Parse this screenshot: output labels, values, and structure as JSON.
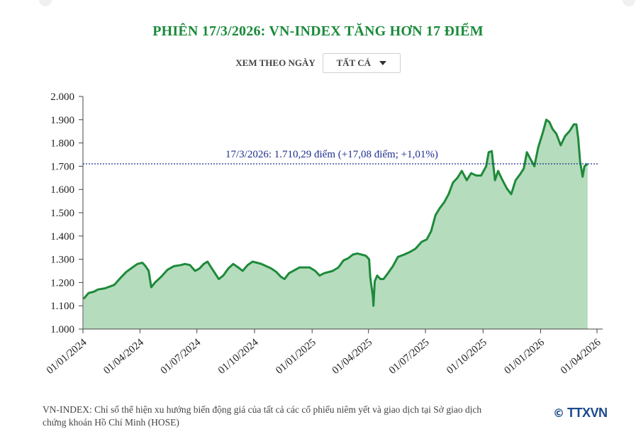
{
  "title": "PHIÊN 17/3/2026: VN-INDEX TĂNG HƠN 17 ĐIỂM",
  "filter": {
    "label": "XEM THEO NGÀY",
    "selected": "TẤT CẢ"
  },
  "footnote": {
    "line1": "VN-INDEX: Chỉ số thể hiện xu hướng biến động giá của tất cả các cổ phiếu niêm yết và giao dịch tại Sở giao dịch",
    "line2": "chứng khoán Hồ Chí Minh (HOSE)"
  },
  "logo": {
    "symbol": "©",
    "text": "TTXVN"
  },
  "colors": {
    "title": "#1a8a3a",
    "line": "#1e8a3a",
    "area": "#b5dcbd",
    "reference": "#1f2f8f"
  },
  "chart_data": {
    "type": "area",
    "ylim": [
      1000,
      2000
    ],
    "yticks": [
      "1.000",
      "1.100",
      "1.200",
      "1.300",
      "1.400",
      "1.500",
      "1.600",
      "1.700",
      "1.800",
      "1.900",
      "2.000"
    ],
    "xticks": [
      "01/01/2024",
      "01/04/2024",
      "01/07/2024",
      "01/10/2024",
      "01/01/2025",
      "01/04/2025",
      "01/07/2025",
      "01/10/2025",
      "01/01/2026",
      "01/04/2026"
    ],
    "xrange": [
      "2024-01-01",
      "2026-04-01"
    ],
    "grid": false,
    "annotation": {
      "text": "17/3/2026: 1.710,29 điểm (+17,08 điểm; +1,01%)",
      "value": 1710.29
    },
    "points": [
      [
        "2024-01-02",
        1130
      ],
      [
        "2024-01-10",
        1155
      ],
      [
        "2024-01-18",
        1160
      ],
      [
        "2024-01-25",
        1170
      ],
      [
        "2024-02-05",
        1175
      ],
      [
        "2024-02-20",
        1190
      ],
      [
        "2024-03-01",
        1220
      ],
      [
        "2024-03-10",
        1245
      ],
      [
        "2024-03-20",
        1265
      ],
      [
        "2024-03-28",
        1280
      ],
      [
        "2024-04-05",
        1285
      ],
      [
        "2024-04-10",
        1270
      ],
      [
        "2024-04-15",
        1250
      ],
      [
        "2024-04-19",
        1180
      ],
      [
        "2024-04-25",
        1200
      ],
      [
        "2024-05-05",
        1225
      ],
      [
        "2024-05-15",
        1255
      ],
      [
        "2024-05-25",
        1270
      ],
      [
        "2024-06-05",
        1275
      ],
      [
        "2024-06-12",
        1280
      ],
      [
        "2024-06-20",
        1275
      ],
      [
        "2024-06-28",
        1250
      ],
      [
        "2024-07-05",
        1260
      ],
      [
        "2024-07-12",
        1280
      ],
      [
        "2024-07-18",
        1290
      ],
      [
        "2024-07-25",
        1260
      ],
      [
        "2024-08-05",
        1215
      ],
      [
        "2024-08-12",
        1230
      ],
      [
        "2024-08-20",
        1260
      ],
      [
        "2024-08-28",
        1280
      ],
      [
        "2024-09-05",
        1265
      ],
      [
        "2024-09-12",
        1250
      ],
      [
        "2024-09-20",
        1275
      ],
      [
        "2024-09-28",
        1290
      ],
      [
        "2024-10-05",
        1285
      ],
      [
        "2024-10-12",
        1280
      ],
      [
        "2024-10-20",
        1270
      ],
      [
        "2024-10-28",
        1260
      ],
      [
        "2024-11-05",
        1245
      ],
      [
        "2024-11-12",
        1225
      ],
      [
        "2024-11-18",
        1215
      ],
      [
        "2024-11-25",
        1240
      ],
      [
        "2024-12-05",
        1255
      ],
      [
        "2024-12-12",
        1265
      ],
      [
        "2024-12-20",
        1265
      ],
      [
        "2024-12-28",
        1265
      ],
      [
        "2025-01-06",
        1250
      ],
      [
        "2025-01-13",
        1230
      ],
      [
        "2025-01-20",
        1240
      ],
      [
        "2025-02-03",
        1250
      ],
      [
        "2025-02-12",
        1265
      ],
      [
        "2025-02-20",
        1295
      ],
      [
        "2025-02-28",
        1305
      ],
      [
        "2025-03-07",
        1320
      ],
      [
        "2025-03-14",
        1325
      ],
      [
        "2025-03-21",
        1320
      ],
      [
        "2025-03-28",
        1315
      ],
      [
        "2025-04-02",
        1300
      ],
      [
        "2025-04-04",
        1220
      ],
      [
        "2025-04-08",
        1140
      ],
      [
        "2025-04-09",
        1100
      ],
      [
        "2025-04-11",
        1205
      ],
      [
        "2025-04-15",
        1230
      ],
      [
        "2025-04-20",
        1215
      ],
      [
        "2025-04-25",
        1215
      ],
      [
        "2025-05-02",
        1240
      ],
      [
        "2025-05-10",
        1270
      ],
      [
        "2025-05-18",
        1310
      ],
      [
        "2025-05-28",
        1320
      ],
      [
        "2025-06-05",
        1330
      ],
      [
        "2025-06-15",
        1345
      ],
      [
        "2025-06-25",
        1375
      ],
      [
        "2025-07-03",
        1385
      ],
      [
        "2025-07-10",
        1420
      ],
      [
        "2025-07-17",
        1490
      ],
      [
        "2025-07-24",
        1520
      ],
      [
        "2025-07-31",
        1545
      ],
      [
        "2025-08-07",
        1580
      ],
      [
        "2025-08-14",
        1630
      ],
      [
        "2025-08-21",
        1650
      ],
      [
        "2025-08-28",
        1680
      ],
      [
        "2025-09-05",
        1640
      ],
      [
        "2025-09-12",
        1670
      ],
      [
        "2025-09-20",
        1660
      ],
      [
        "2025-09-28",
        1660
      ],
      [
        "2025-10-06",
        1700
      ],
      [
        "2025-10-10",
        1760
      ],
      [
        "2025-10-15",
        1765
      ],
      [
        "2025-10-20",
        1640
      ],
      [
        "2025-10-25",
        1680
      ],
      [
        "2025-11-01",
        1640
      ],
      [
        "2025-11-08",
        1605
      ],
      [
        "2025-11-15",
        1580
      ],
      [
        "2025-11-22",
        1640
      ],
      [
        "2025-11-29",
        1665
      ],
      [
        "2025-12-05",
        1690
      ],
      [
        "2025-12-10",
        1760
      ],
      [
        "2025-12-15",
        1735
      ],
      [
        "2025-12-22",
        1700
      ],
      [
        "2025-12-28",
        1780
      ],
      [
        "2026-01-05",
        1850
      ],
      [
        "2026-01-10",
        1900
      ],
      [
        "2026-01-15",
        1890
      ],
      [
        "2026-01-20",
        1860
      ],
      [
        "2026-01-26",
        1840
      ],
      [
        "2026-02-02",
        1790
      ],
      [
        "2026-02-09",
        1830
      ],
      [
        "2026-02-16",
        1850
      ],
      [
        "2026-02-23",
        1880
      ],
      [
        "2026-02-27",
        1880
      ],
      [
        "2026-03-02",
        1820
      ],
      [
        "2026-03-05",
        1720
      ],
      [
        "2026-03-09",
        1655
      ],
      [
        "2026-03-12",
        1700
      ],
      [
        "2026-03-17",
        1710.29
      ]
    ]
  }
}
